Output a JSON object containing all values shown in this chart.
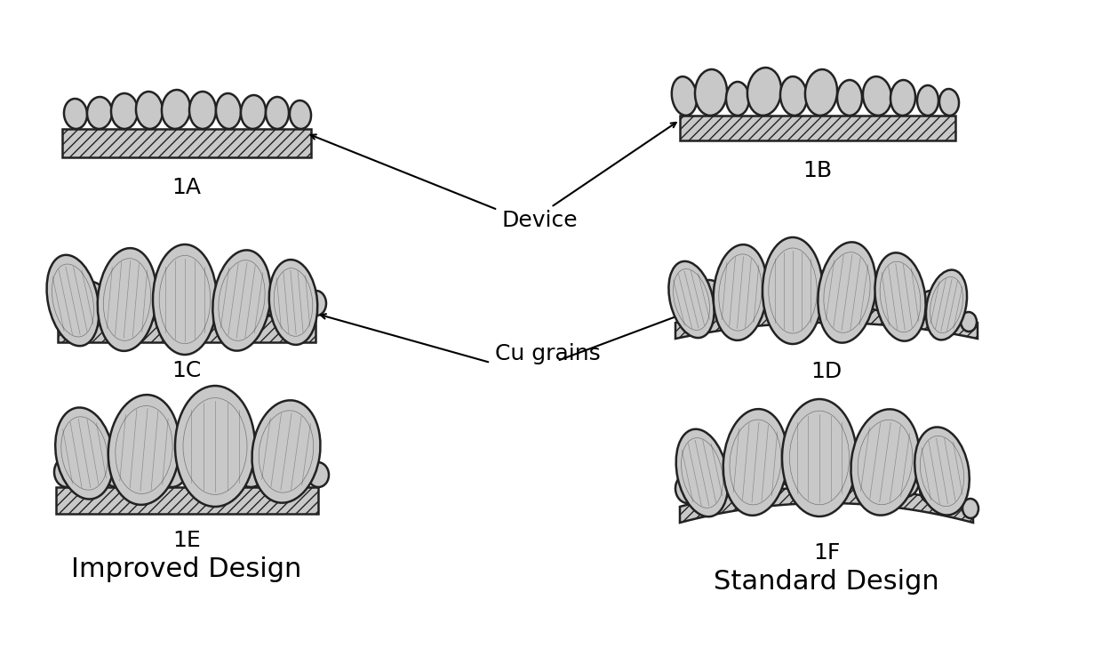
{
  "bg_color": "#ffffff",
  "grain_fill": "#c8c8c8",
  "grain_edge": "#222222",
  "substrate_fill": "#c8c8c8",
  "substrate_edge": "#222222",
  "label_1A": "1A",
  "label_1B": "1B",
  "label_1C": "1C",
  "label_1D": "1D",
  "label_1E": "1E",
  "label_1F": "1F",
  "label_improved": "Improved Design",
  "label_standard": "Standard Design",
  "label_device": "Device",
  "label_cu_grains": "Cu grains",
  "sublabel_fontsize": 18,
  "title_fontsize": 22,
  "arrow_fontsize": 18
}
